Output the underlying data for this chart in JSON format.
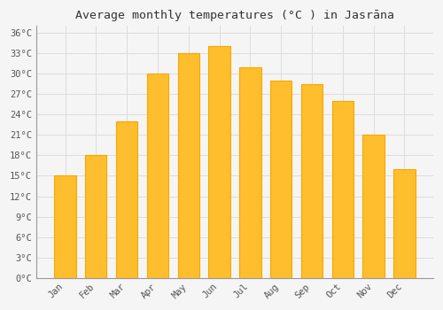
{
  "title": "Average monthly temperatures (°C ) in Jasrāna",
  "months": [
    "Jan",
    "Feb",
    "Mar",
    "Apr",
    "May",
    "Jun",
    "Jul",
    "Aug",
    "Sep",
    "Oct",
    "Nov",
    "Dec"
  ],
  "values": [
    15,
    18,
    23,
    30,
    33,
    34,
    31,
    29,
    28.5,
    26,
    21,
    16
  ],
  "bar_color_main": "#FFBE2D",
  "bar_color_edge": "#F5A800",
  "background_color": "#f5f5f5",
  "grid_color": "#dddddd",
  "text_color": "#555555",
  "ylim": [
    0,
    37
  ],
  "yticks": [
    0,
    3,
    6,
    9,
    12,
    15,
    18,
    21,
    24,
    27,
    30,
    33,
    36
  ],
  "title_fontsize": 9.5,
  "tick_fontsize": 7.5,
  "font_family": "monospace",
  "bar_width": 0.7,
  "xlabel_rotation": 45
}
